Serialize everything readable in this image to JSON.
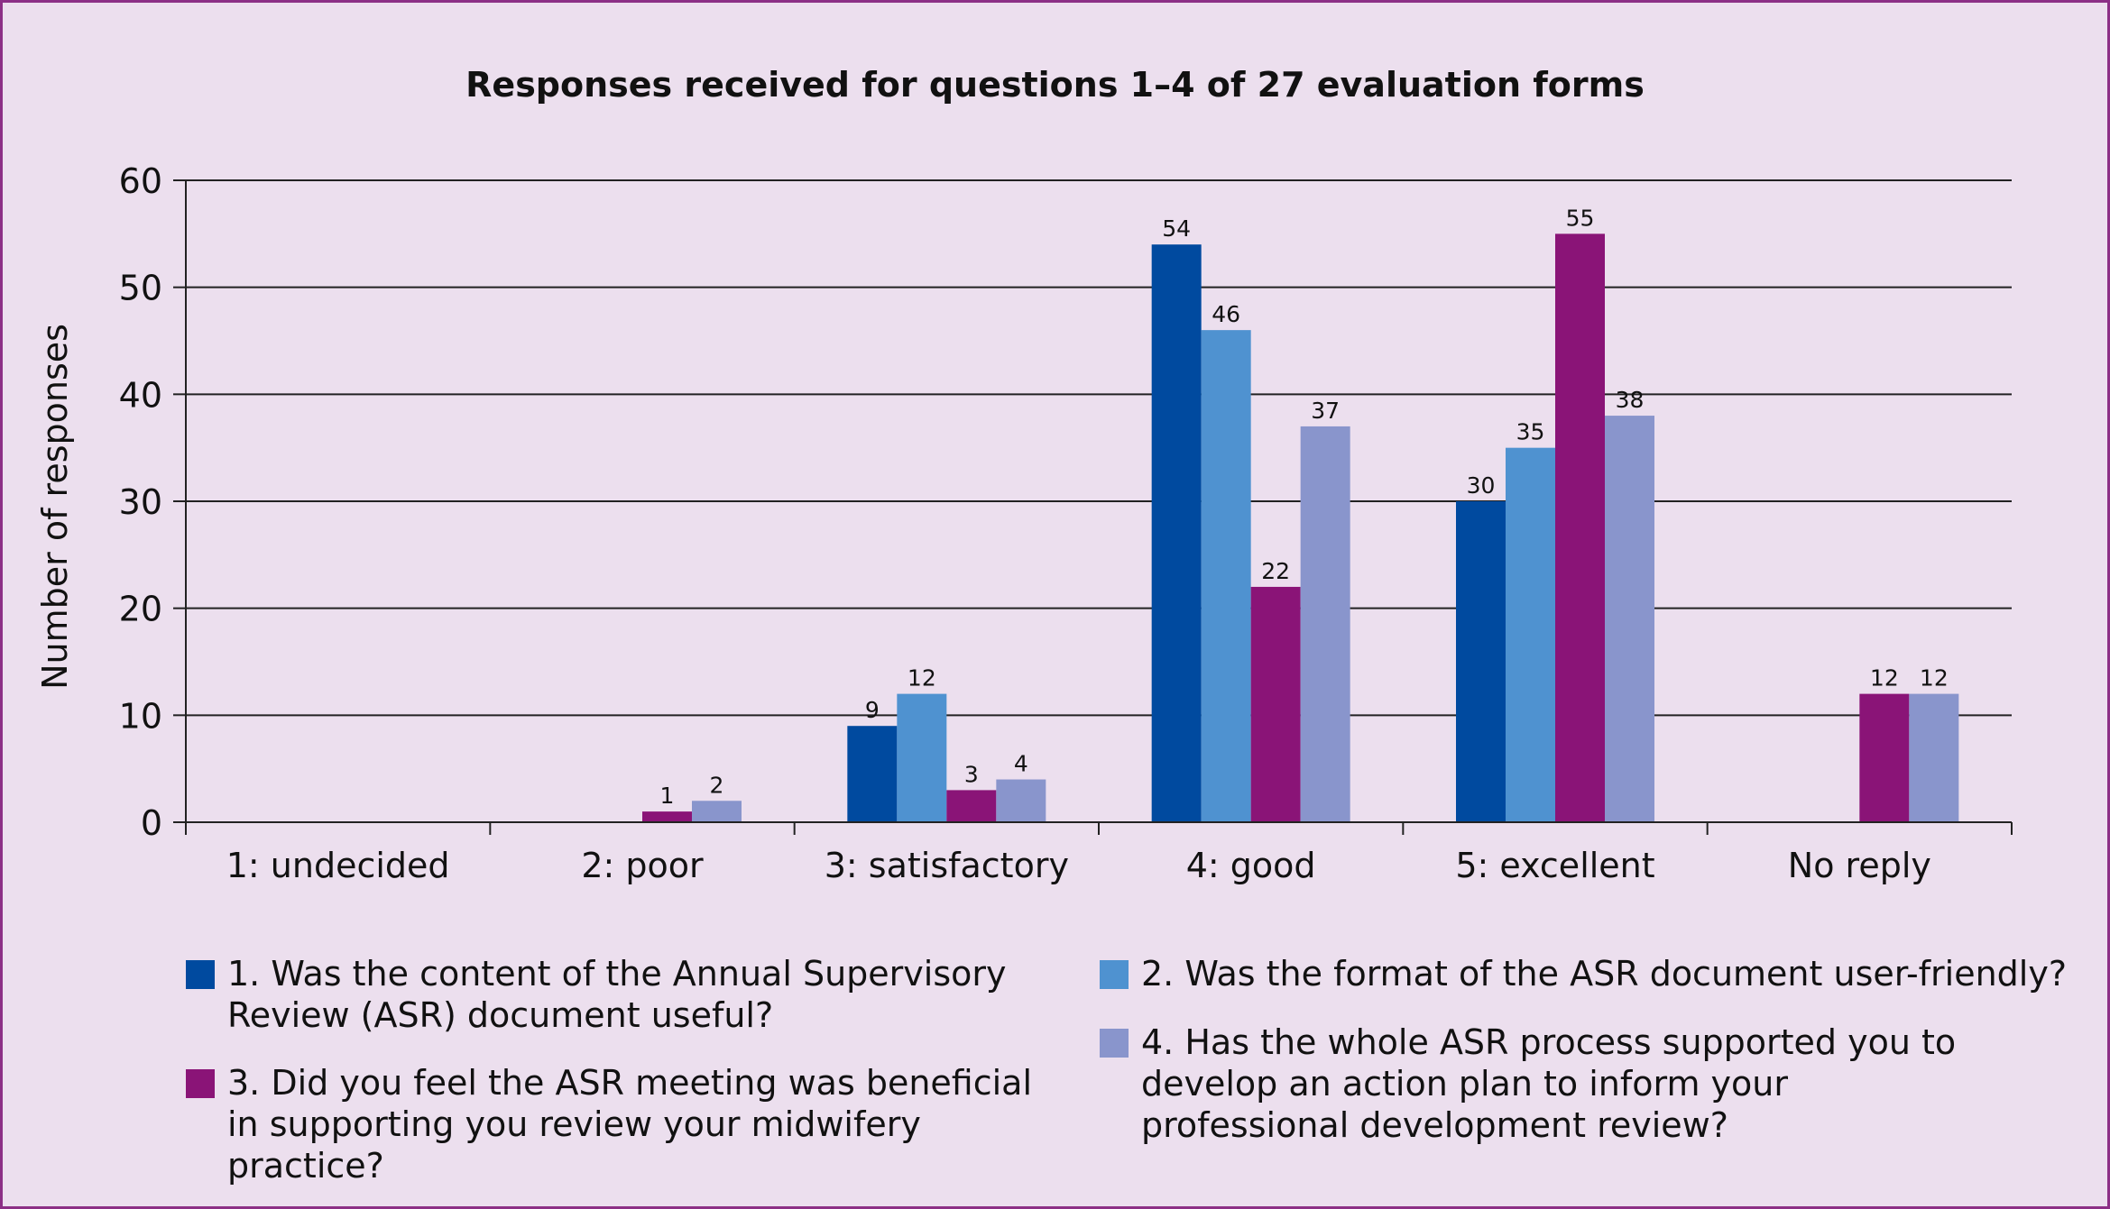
{
  "chart_data": {
    "type": "bar",
    "title": "Responses received for questions 1–4 of 27 evaluation forms",
    "ylabel": "Number of responses",
    "xlabel": "",
    "ylim": [
      0,
      60
    ],
    "yticks": [
      0,
      10,
      20,
      30,
      40,
      50,
      60
    ],
    "grid": true,
    "legend_position": "bottom",
    "categories": [
      "1: undecided",
      "2: poor",
      "3: satisfactory",
      "4: good",
      "5: excellent",
      "No reply"
    ],
    "series": [
      {
        "name": "1. Was the content of the Annual Supervisory Review (ASR) document useful?",
        "color": "#004a9f",
        "values": [
          null,
          null,
          9,
          54,
          30,
          null
        ]
      },
      {
        "name": "2. Was the format of the ASR document user-friendly?",
        "color": "#4f92d0",
        "values": [
          null,
          null,
          12,
          46,
          35,
          null
        ]
      },
      {
        "name": "3. Did you feel the ASR meeting was beneficial in supporting you review your midwifery practice?",
        "color": "#8a1477",
        "values": [
          null,
          1,
          3,
          22,
          55,
          12
        ]
      },
      {
        "name": "4. Has the whole ASR process supported you to develop an action plan to inform your professional development review?",
        "color": "#8995cc",
        "values": [
          null,
          2,
          4,
          37,
          38,
          12
        ]
      }
    ]
  }
}
